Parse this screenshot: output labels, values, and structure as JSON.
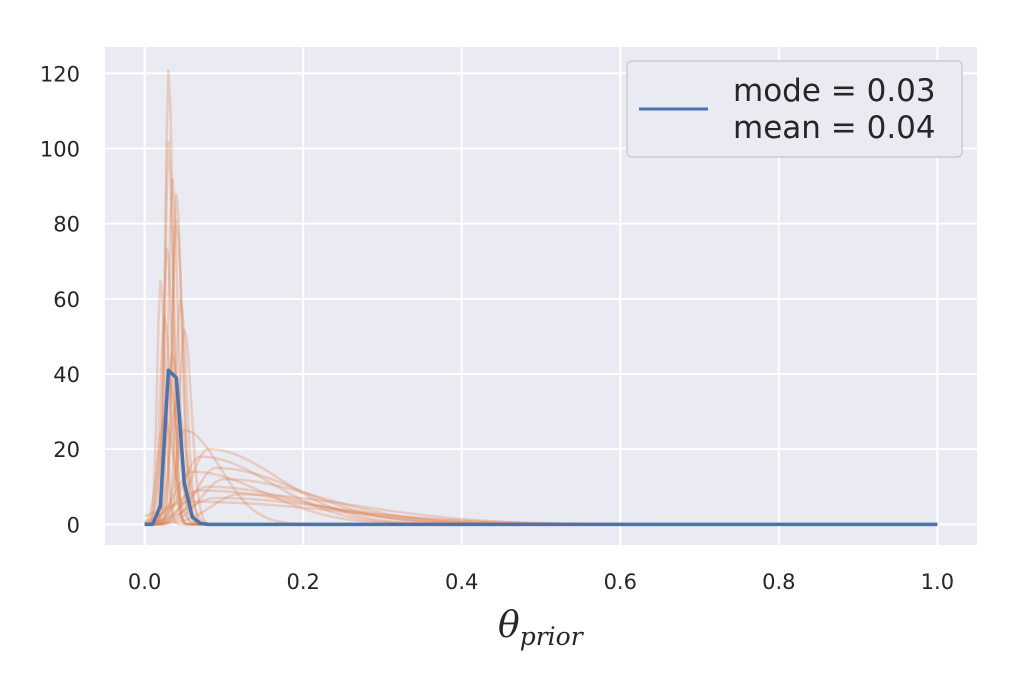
{
  "chart_data": {
    "type": "line",
    "title": "",
    "xlabel_main": "θ",
    "xlabel_sub": "prior",
    "ylabel": "",
    "xlim": [
      -0.05,
      1.05
    ],
    "ylim": [
      -5.5,
      127
    ],
    "grid": true,
    "legend_position": "top-right",
    "x_ticks": [
      0.0,
      0.2,
      0.4,
      0.6,
      0.8,
      1.0
    ],
    "x_tick_labels": [
      "0.0",
      "0.2",
      "0.4",
      "0.6",
      "0.8",
      "1.0"
    ],
    "y_ticks": [
      0,
      20,
      40,
      60,
      80,
      100,
      120
    ],
    "y_tick_labels": [
      "0",
      "20",
      "40",
      "60",
      "80",
      "100",
      "120"
    ],
    "mean_series": {
      "name_line1": "mode = 0.03",
      "name_line2": "mean = 0.04",
      "color": "#4c72b0",
      "x": [
        0.0,
        0.01,
        0.02,
        0.03,
        0.04,
        0.05,
        0.06,
        0.07,
        0.08,
        0.1,
        0.2,
        0.4,
        0.6,
        0.8,
        1.0
      ],
      "y": [
        0,
        0,
        5,
        41,
        39,
        11,
        2,
        0.3,
        0,
        0,
        0,
        0,
        0,
        0,
        0
      ]
    },
    "samples_color": "#dd8452",
    "sample_curves": [
      {
        "peak_x": 0.03,
        "peak_y": 121,
        "width": 0.006
      },
      {
        "peak_x": 0.03,
        "peak_y": 102,
        "width": 0.006
      },
      {
        "peak_x": 0.035,
        "peak_y": 92,
        "width": 0.007
      },
      {
        "peak_x": 0.04,
        "peak_y": 88,
        "width": 0.007
      },
      {
        "peak_x": 0.04,
        "peak_y": 81,
        "width": 0.008
      },
      {
        "peak_x": 0.028,
        "peak_y": 74,
        "width": 0.007
      },
      {
        "peak_x": 0.02,
        "peak_y": 65,
        "width": 0.006
      },
      {
        "peak_x": 0.045,
        "peak_y": 60,
        "width": 0.008
      },
      {
        "peak_x": 0.025,
        "peak_y": 55,
        "width": 0.008
      },
      {
        "peak_x": 0.05,
        "peak_y": 52,
        "width": 0.009
      },
      {
        "peak_x": 0.035,
        "peak_y": 45,
        "width": 0.01
      },
      {
        "peak_x": 0.03,
        "peak_y": 38,
        "width": 0.012
      },
      {
        "peak_x": 0.04,
        "peak_y": 32,
        "width": 0.012
      },
      {
        "peak_x": 0.025,
        "peak_y": 28,
        "width": 0.012
      },
      {
        "peak_x": 0.05,
        "peak_y": 25,
        "width": 0.015
      },
      {
        "peak_x": 0.08,
        "peak_y": 20,
        "width": 0.03
      },
      {
        "peak_x": 0.07,
        "peak_y": 18,
        "width": 0.03
      },
      {
        "peak_x": 0.09,
        "peak_y": 15,
        "width": 0.035
      },
      {
        "peak_x": 0.06,
        "peak_y": 14,
        "width": 0.03
      },
      {
        "peak_x": 0.1,
        "peak_y": 12,
        "width": 0.04
      },
      {
        "peak_x": 0.08,
        "peak_y": 10,
        "width": 0.04
      },
      {
        "peak_x": 0.07,
        "peak_y": 9,
        "width": 0.045
      },
      {
        "peak_x": 0.12,
        "peak_y": 8,
        "width": 0.05
      },
      {
        "peak_x": 0.09,
        "peak_y": 7,
        "width": 0.05
      },
      {
        "peak_x": 0.06,
        "peak_y": 6,
        "width": 0.06
      }
    ]
  }
}
